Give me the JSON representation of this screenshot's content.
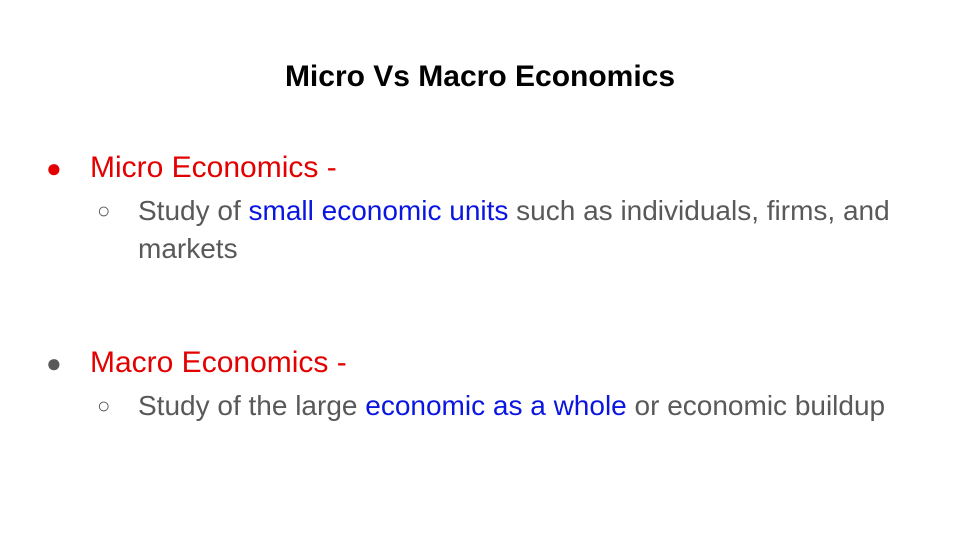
{
  "slide": {
    "title": "Micro Vs Macro Economics",
    "sections": [
      {
        "heading": "Micro Economics -",
        "heading_color": "#e30000",
        "detail": {
          "before": "Study of ",
          "highlight": "small economic units",
          "after": " such as individuals, firms, and markets"
        }
      },
      {
        "heading": "Macro Economics -",
        "heading_color": "#e30000",
        "detail": {
          "before": "Study of the large ",
          "highlight": "economic as a whole",
          "after": " or economic buildup"
        }
      }
    ],
    "colors": {
      "heading": "#e30000",
      "highlight": "#0a16e0",
      "body_text": "#595959",
      "title": "#000000"
    },
    "bullets": {
      "level1": "●",
      "level2": "○"
    }
  }
}
